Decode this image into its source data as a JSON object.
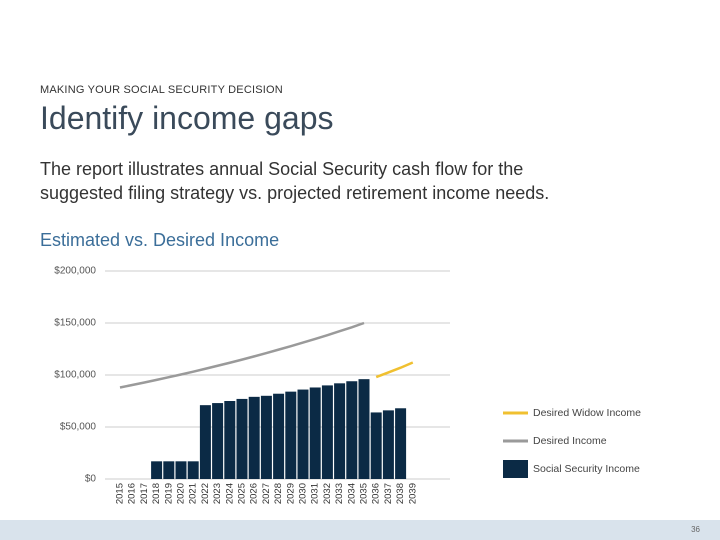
{
  "header": {
    "kicker": "MAKING YOUR SOCIAL SECURITY DECISION",
    "title": "Identify income gaps",
    "body": [
      "The report illustrates annual Social Security cash flow for the",
      "suggested filing strategy vs. projected retirement income needs."
    ]
  },
  "page_number": "36",
  "chart_data": {
    "type": "bar_line",
    "title": "Estimated vs. Desired Income",
    "categories": [
      "2015",
      "2016",
      "2017",
      "2018",
      "2019",
      "2020",
      "2021",
      "2022",
      "2023",
      "2024",
      "2025",
      "2026",
      "2027",
      "2028",
      "2029",
      "2030",
      "2031",
      "2032",
      "2033",
      "2034",
      "2035",
      "2036",
      "2037",
      "2038",
      "2039"
    ],
    "series": [
      {
        "name": "Desired Widow Income",
        "color": "#f0c030",
        "kind": "line",
        "values": [
          null,
          null,
          null,
          null,
          null,
          null,
          null,
          null,
          null,
          null,
          null,
          null,
          null,
          null,
          null,
          null,
          null,
          null,
          null,
          null,
          null,
          98000,
          102500,
          107000,
          112000
        ]
      },
      {
        "name": "Desired Income",
        "color": "#9a9a9a",
        "kind": "line",
        "values": [
          88000,
          90400,
          92800,
          95300,
          97900,
          100500,
          103200,
          106000,
          108900,
          111800,
          114800,
          117900,
          121100,
          124400,
          127700,
          131200,
          134700,
          138300,
          142100,
          145900,
          150000,
          null,
          null,
          null,
          null
        ]
      },
      {
        "name": "Social Security Income",
        "color": "#0b2a45",
        "kind": "bar",
        "values": [
          0,
          0,
          0,
          17000,
          17000,
          17000,
          17000,
          71000,
          73000,
          75000,
          77000,
          79000,
          80000,
          82000,
          84000,
          86000,
          88000,
          90000,
          92000,
          94000,
          96000,
          64000,
          66000,
          68000,
          0
        ]
      }
    ],
    "ylim": [
      0,
      200000
    ],
    "yticks": [
      {
        "value": 0,
        "label": "$0"
      },
      {
        "value": 50000,
        "label": "$50,000"
      },
      {
        "value": 100000,
        "label": "$100,000"
      },
      {
        "value": 150000,
        "label": "$150,000"
      },
      {
        "value": 200000,
        "label": "$200,000"
      }
    ],
    "grid": true,
    "legend": "right"
  }
}
